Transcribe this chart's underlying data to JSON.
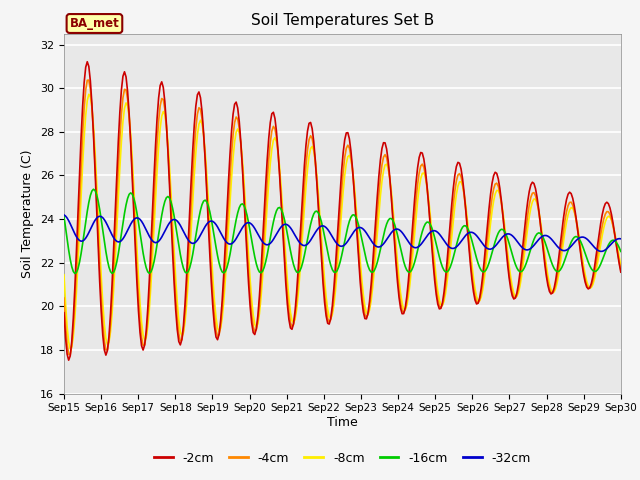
{
  "title": "Soil Temperatures Set B",
  "xlabel": "Time",
  "ylabel": "Soil Temperature (C)",
  "ylim": [
    16,
    32.5
  ],
  "annotation": "BA_met",
  "bg_color": "#e8e8e8",
  "grid_color": "white",
  "series": {
    "-2cm": {
      "color": "#cc0000",
      "lw": 1.2
    },
    "-4cm": {
      "color": "#ff8800",
      "lw": 1.2
    },
    "-8cm": {
      "color": "#ffee00",
      "lw": 1.2
    },
    "-16cm": {
      "color": "#00cc00",
      "lw": 1.2
    },
    "-32cm": {
      "color": "#0000cc",
      "lw": 1.2
    }
  },
  "legend_colors": {
    "-2cm": "#cc0000",
    "-4cm": "#ff8800",
    "-8cm": "#ffee00",
    "-16cm": "#00cc00",
    "-32cm": "#0000cc"
  },
  "yticks": [
    16,
    18,
    20,
    22,
    24,
    26,
    28,
    30,
    32
  ],
  "xtick_labels": [
    "Sep 15",
    "Sep 16",
    "Sep 17",
    "Sep 18",
    "Sep 19",
    "Sep 20",
    "Sep 21",
    "Sep 22",
    "Sep 23",
    "Sep 24",
    "Sep 25",
    "Sep 26",
    "Sep 27",
    "Sep 28",
    "Sep 29",
    "Sep 30"
  ]
}
